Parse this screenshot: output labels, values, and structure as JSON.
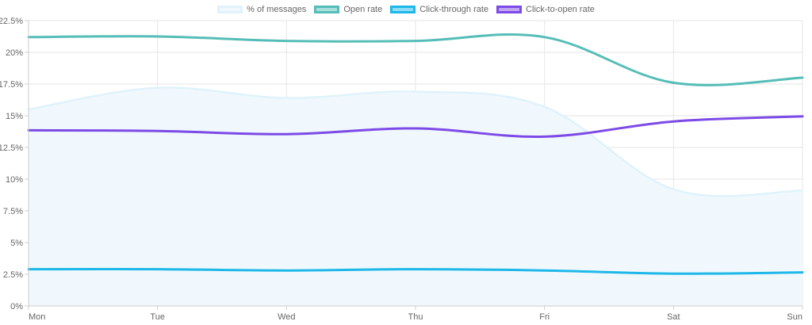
{
  "chart_data": {
    "type": "line",
    "categories": [
      "Mon",
      "Tue",
      "Wed",
      "Thu",
      "Fri",
      "Sat",
      "Sun"
    ],
    "y_ticks": [
      "0%",
      "2.5%",
      "5%",
      "7.5%",
      "10%",
      "12.5%",
      "15%",
      "17.5%",
      "20%",
      "22.5%"
    ],
    "ylim": [
      0,
      22.5
    ],
    "y_unit": "%",
    "grid": true,
    "legend_position": "top-center",
    "series": [
      {
        "name": "% of messages",
        "values": [
          15.5,
          17.2,
          16.4,
          16.9,
          15.7,
          9.2,
          9.1
        ],
        "line_color": "#e0f2fb",
        "fill_color": "#f0f8fd",
        "filled": true
      },
      {
        "name": "Open rate",
        "values": [
          21.2,
          21.25,
          20.9,
          20.9,
          21.2,
          17.6,
          18.0
        ],
        "line_color": "#55bdb7",
        "fill_color": "#a9dfdc",
        "filled": false
      },
      {
        "name": "Click-through rate",
        "values": [
          2.9,
          2.9,
          2.8,
          2.9,
          2.8,
          2.55,
          2.65
        ],
        "line_color": "#1eb8e8",
        "fill_color": "#8fdcf4",
        "filled": false
      },
      {
        "name": "Click-to-open rate",
        "values": [
          13.85,
          13.8,
          13.55,
          14.0,
          13.35,
          14.55,
          14.95
        ],
        "line_color": "#7c4ae6",
        "fill_color": "#bfa4f2",
        "filled": false
      }
    ]
  }
}
